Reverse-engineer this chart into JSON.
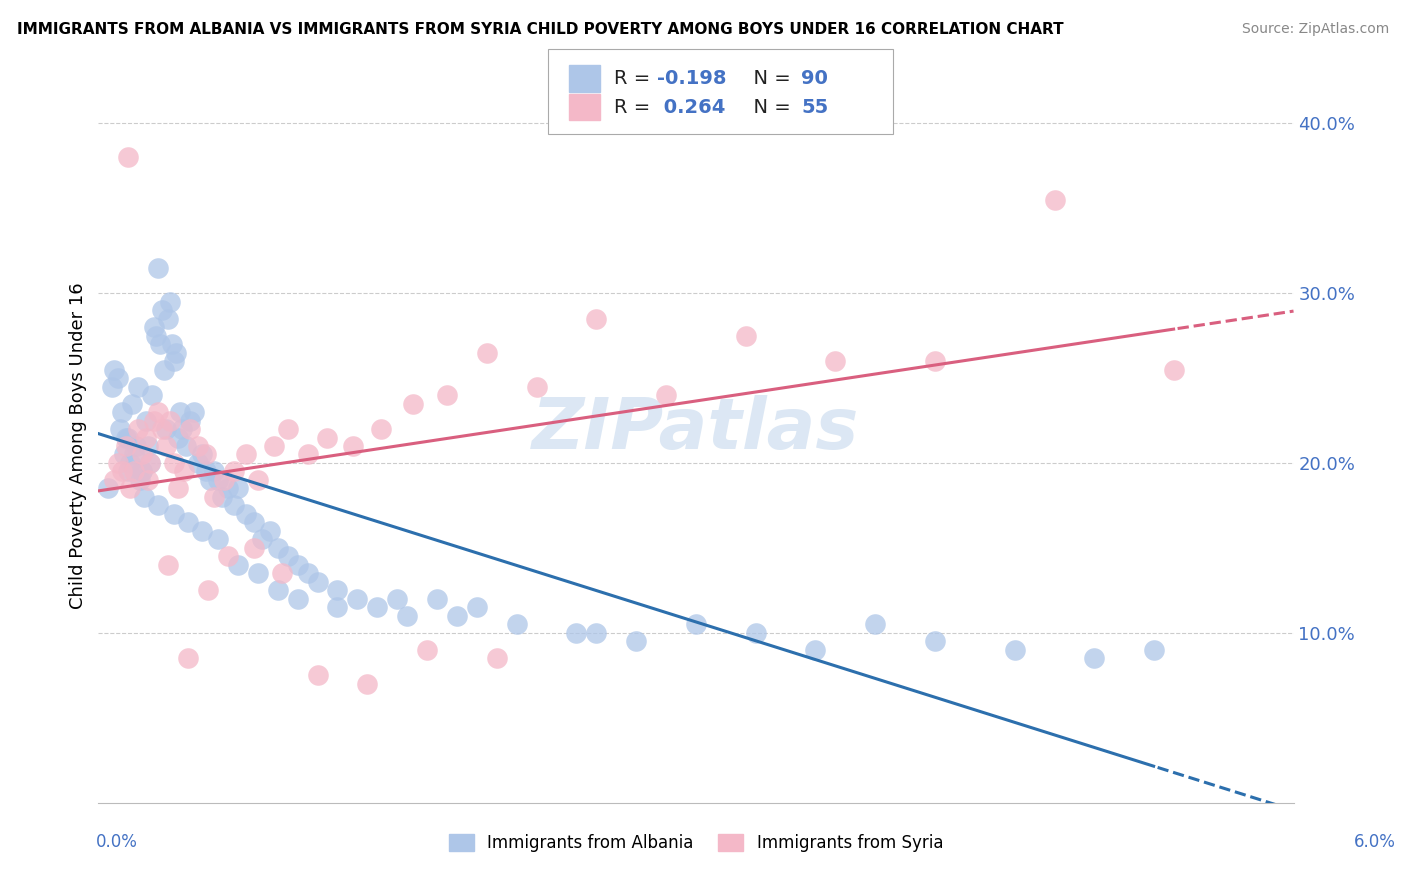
{
  "title": "IMMIGRANTS FROM ALBANIA VS IMMIGRANTS FROM SYRIA CHILD POVERTY AMONG BOYS UNDER 16 CORRELATION CHART",
  "source": "Source: ZipAtlas.com",
  "ylabel": "Child Poverty Among Boys Under 16",
  "watermark": "ZIPatlas",
  "legend_labels_bottom": [
    "Immigrants from Albania",
    "Immigrants from Syria"
  ],
  "albania_color": "#aec6e8",
  "albania_edge_color": "#aec6e8",
  "syria_color": "#f4b8c8",
  "syria_edge_color": "#f4b8c8",
  "albania_line_color": "#2c6fad",
  "syria_line_color": "#d95f7f",
  "xlim": [
    0.0,
    6.0
  ],
  "ylim": [
    0.0,
    42.0
  ],
  "yticks": [
    10.0,
    20.0,
    30.0,
    40.0
  ],
  "ytick_labels": [
    "10.0%",
    "20.0%",
    "30.0%",
    "40.0%"
  ],
  "albania_R": -0.198,
  "albania_N": 90,
  "syria_R": 0.264,
  "syria_N": 55,
  "albania_x": [
    0.05,
    0.07,
    0.08,
    0.1,
    0.11,
    0.12,
    0.13,
    0.14,
    0.15,
    0.16,
    0.17,
    0.18,
    0.19,
    0.2,
    0.21,
    0.22,
    0.23,
    0.24,
    0.25,
    0.26,
    0.27,
    0.28,
    0.29,
    0.3,
    0.31,
    0.32,
    0.33,
    0.34,
    0.35,
    0.36,
    0.37,
    0.38,
    0.39,
    0.4,
    0.41,
    0.42,
    0.44,
    0.46,
    0.48,
    0.5,
    0.52,
    0.54,
    0.56,
    0.58,
    0.6,
    0.62,
    0.65,
    0.68,
    0.7,
    0.74,
    0.78,
    0.82,
    0.86,
    0.9,
    0.95,
    1.0,
    1.05,
    1.1,
    1.2,
    1.3,
    1.4,
    1.55,
    1.7,
    1.9,
    2.1,
    2.4,
    2.7,
    3.0,
    3.3,
    3.6,
    3.9,
    4.2,
    4.6,
    5.0,
    5.3,
    0.15,
    0.22,
    0.3,
    0.38,
    0.45,
    0.52,
    0.6,
    0.7,
    0.8,
    0.9,
    1.0,
    1.2,
    1.5,
    1.8,
    2.5
  ],
  "albania_y": [
    18.5,
    24.5,
    25.5,
    25.0,
    22.0,
    23.0,
    20.5,
    21.5,
    19.5,
    20.0,
    23.5,
    20.5,
    21.0,
    24.5,
    19.0,
    19.5,
    18.0,
    22.5,
    21.0,
    20.0,
    24.0,
    28.0,
    27.5,
    31.5,
    27.0,
    29.0,
    25.5,
    22.0,
    28.5,
    29.5,
    27.0,
    26.0,
    26.5,
    21.5,
    23.0,
    22.0,
    21.0,
    22.5,
    23.0,
    20.0,
    20.5,
    19.5,
    19.0,
    19.5,
    19.0,
    18.0,
    18.5,
    17.5,
    18.5,
    17.0,
    16.5,
    15.5,
    16.0,
    15.0,
    14.5,
    14.0,
    13.5,
    13.0,
    12.5,
    12.0,
    11.5,
    11.0,
    12.0,
    11.5,
    10.5,
    10.0,
    9.5,
    10.5,
    10.0,
    9.0,
    10.5,
    9.5,
    9.0,
    8.5,
    9.0,
    21.5,
    19.5,
    17.5,
    17.0,
    16.5,
    16.0,
    15.5,
    14.0,
    13.5,
    12.5,
    12.0,
    11.5,
    12.0,
    11.0,
    10.0
  ],
  "syria_x": [
    0.08,
    0.1,
    0.12,
    0.14,
    0.16,
    0.18,
    0.2,
    0.22,
    0.24,
    0.26,
    0.28,
    0.3,
    0.32,
    0.34,
    0.36,
    0.38,
    0.4,
    0.43,
    0.46,
    0.5,
    0.54,
    0.58,
    0.63,
    0.68,
    0.74,
    0.8,
    0.88,
    0.95,
    1.05,
    1.15,
    1.28,
    1.42,
    1.58,
    1.75,
    1.95,
    2.2,
    2.5,
    2.85,
    3.25,
    3.7,
    4.2,
    4.8,
    5.4,
    0.15,
    0.25,
    0.35,
    0.45,
    0.55,
    0.65,
    0.78,
    0.92,
    1.1,
    1.35,
    1.65,
    2.0
  ],
  "syria_y": [
    19.0,
    20.0,
    19.5,
    21.0,
    18.5,
    19.5,
    22.0,
    20.5,
    21.5,
    20.0,
    22.5,
    23.0,
    22.0,
    21.0,
    22.5,
    20.0,
    18.5,
    19.5,
    22.0,
    21.0,
    20.5,
    18.0,
    19.0,
    19.5,
    20.5,
    19.0,
    21.0,
    22.0,
    20.5,
    21.5,
    21.0,
    22.0,
    23.5,
    24.0,
    26.5,
    24.5,
    28.5,
    24.0,
    27.5,
    26.0,
    26.0,
    35.5,
    25.5,
    38.0,
    19.0,
    14.0,
    8.5,
    12.5,
    14.5,
    15.0,
    13.5,
    7.5,
    7.0,
    9.0,
    8.5
  ]
}
